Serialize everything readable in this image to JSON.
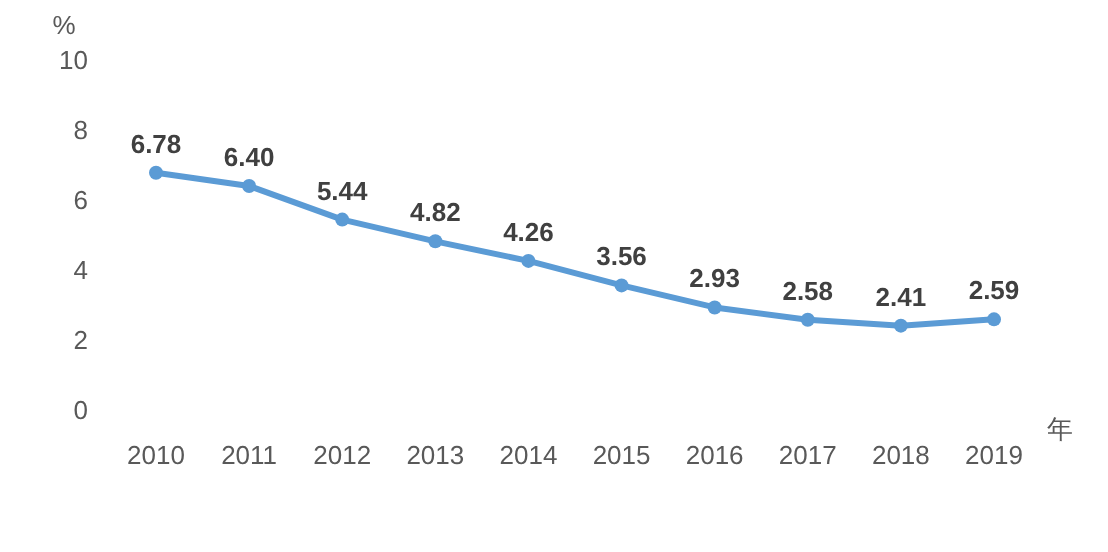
{
  "chart_data": {
    "type": "line",
    "ylabel": "%",
    "xlabel": "年",
    "categories": [
      "2010",
      "2011",
      "2012",
      "2013",
      "2014",
      "2015",
      "2016",
      "2017",
      "2018",
      "2019"
    ],
    "series": [
      {
        "color": "#5b9bd5",
        "values": [
          6.78,
          6.4,
          5.44,
          4.82,
          4.26,
          3.56,
          2.93,
          2.58,
          2.41,
          2.59
        ]
      }
    ],
    "value_labels": [
      "6.78",
      "6.40",
      "5.44",
      "4.82",
      "4.26",
      "3.56",
      "2.93",
      "2.58",
      "2.41",
      "2.59"
    ],
    "ylim": [
      0,
      10
    ],
    "yticks": [
      0,
      2,
      4,
      6,
      8,
      10
    ],
    "grid": false,
    "marker": "circle",
    "line_style": "solid"
  }
}
